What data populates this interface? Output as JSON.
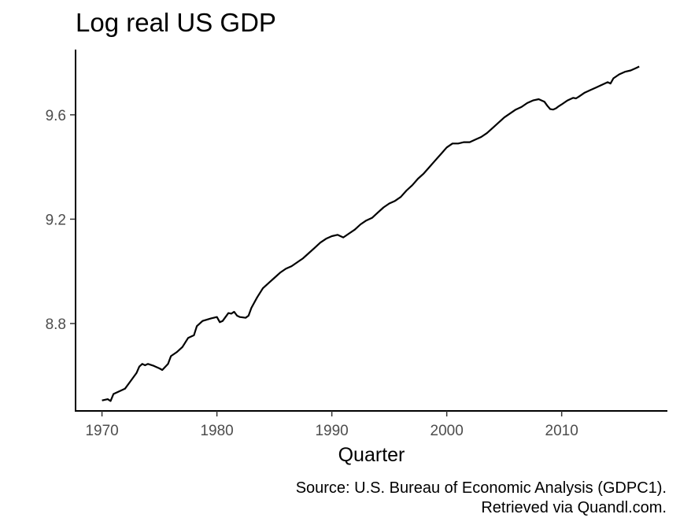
{
  "chart_data": {
    "type": "line",
    "title": "Log real US GDP",
    "xlabel": "Quarter",
    "ylabel": "",
    "caption_lines": [
      "Source: U.S. Bureau of Economic Analysis (GDPC1).",
      "Retrieved via Quandl.com."
    ],
    "xlim": [
      1967.7,
      2019.2
    ],
    "ylim": [
      8.465,
      9.85
    ],
    "x_ticks": [
      1970,
      1980,
      1990,
      2000,
      2010
    ],
    "x_tick_labels": [
      "1970",
      "1980",
      "1990",
      "2000",
      "2010"
    ],
    "y_ticks": [
      8.8,
      9.2,
      9.6
    ],
    "y_tick_labels": [
      "8.8",
      "9.2",
      "9.6"
    ],
    "grid": false,
    "series": [
      {
        "x": [
          1970.0,
          1970.5,
          1970.75,
          1971.0,
          1971.5,
          1972.0,
          1972.5,
          1973.0,
          1973.25,
          1973.5,
          1973.75,
          1974.0,
          1974.5,
          1975.0,
          1975.25,
          1975.75,
          1976.0,
          1976.5,
          1977.0,
          1977.5,
          1978.0,
          1978.25,
          1978.75,
          1979.5,
          1980.0,
          1980.25,
          1980.5,
          1981.0,
          1981.25,
          1981.5,
          1981.75,
          1982.0,
          1982.5,
          1982.75,
          1983.0,
          1983.5,
          1984.0,
          1984.5,
          1985.0,
          1985.5,
          1986.0,
          1986.5,
          1987.0,
          1987.5,
          1988.0,
          1988.5,
          1989.0,
          1989.5,
          1990.0,
          1990.5,
          1990.75,
          1991.0,
          1991.5,
          1992.0,
          1992.5,
          1993.0,
          1993.5,
          1994.0,
          1994.5,
          1995.0,
          1995.5,
          1996.0,
          1996.5,
          1997.0,
          1997.5,
          1998.0,
          1998.5,
          1999.0,
          1999.5,
          2000.0,
          2000.5,
          2001.0,
          2001.5,
          2002.0,
          2002.5,
          2003.0,
          2003.5,
          2004.0,
          2004.5,
          2005.0,
          2005.5,
          2006.0,
          2006.5,
          2007.0,
          2007.5,
          2008.0,
          2008.25,
          2008.5,
          2008.75,
          2009.0,
          2009.25,
          2009.5,
          2009.75,
          2010.0,
          2010.5,
          2011.0,
          2011.25,
          2011.5,
          2012.0,
          2012.5,
          2013.0,
          2013.5,
          2014.0,
          2014.25,
          2014.5,
          2015.0,
          2015.5,
          2016.0,
          2016.5,
          2016.75
        ],
        "y": [
          8.505,
          8.51,
          8.503,
          8.53,
          8.54,
          8.55,
          8.58,
          8.61,
          8.635,
          8.645,
          8.64,
          8.645,
          8.638,
          8.628,
          8.622,
          8.645,
          8.675,
          8.69,
          8.71,
          8.745,
          8.755,
          8.79,
          8.81,
          8.82,
          8.825,
          8.805,
          8.81,
          8.84,
          8.838,
          8.845,
          8.83,
          8.825,
          8.822,
          8.83,
          8.86,
          8.9,
          8.935,
          8.955,
          8.975,
          8.995,
          9.01,
          9.02,
          9.035,
          9.05,
          9.07,
          9.09,
          9.11,
          9.125,
          9.135,
          9.14,
          9.135,
          9.13,
          9.145,
          9.16,
          9.18,
          9.195,
          9.205,
          9.225,
          9.245,
          9.26,
          9.27,
          9.285,
          9.31,
          9.33,
          9.355,
          9.375,
          9.4,
          9.425,
          9.45,
          9.475,
          9.49,
          9.49,
          9.495,
          9.495,
          9.505,
          9.515,
          9.53,
          9.55,
          9.57,
          9.59,
          9.605,
          9.62,
          9.63,
          9.645,
          9.655,
          9.66,
          9.655,
          9.65,
          9.635,
          9.622,
          9.62,
          9.625,
          9.633,
          9.64,
          9.655,
          9.665,
          9.663,
          9.67,
          9.685,
          9.695,
          9.705,
          9.715,
          9.725,
          9.72,
          9.74,
          9.755,
          9.765,
          9.77,
          9.78,
          9.785
        ]
      }
    ]
  }
}
